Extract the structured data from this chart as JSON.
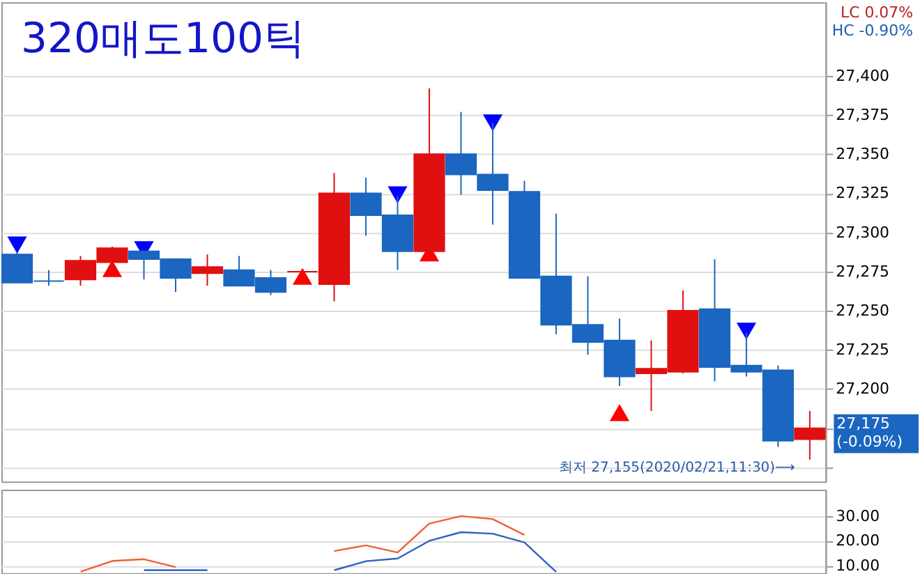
{
  "chart_data": [
    {
      "type": "candlestick",
      "title": "320매도100틱",
      "categories": [
        null,
        null,
        null,
        null,
        null,
        null,
        null,
        null,
        null,
        null,
        null,
        null,
        null,
        null,
        null,
        null,
        null,
        null,
        null,
        null,
        null,
        null,
        null,
        null,
        null,
        null
      ],
      "ohlc": [
        [
          27286,
          27287,
          27268,
          27268
        ],
        [
          27269,
          27276,
          27266,
          27269
        ],
        [
          27270,
          27285,
          27266,
          27282
        ],
        [
          27281,
          27291,
          27279,
          27290
        ],
        [
          27288,
          27288,
          27270,
          27283
        ],
        [
          27283,
          27283,
          27262,
          27271
        ],
        [
          27274,
          27286,
          27266,
          27278
        ],
        [
          27276,
          27285,
          27266,
          27266
        ],
        [
          27271,
          27276,
          27260,
          27262
        ],
        [
          27275,
          27276,
          27274,
          27275
        ],
        [
          27267,
          27338,
          27256,
          27325
        ],
        [
          27325,
          27335,
          27298,
          27311
        ],
        [
          27311,
          27323,
          27276,
          27288
        ],
        [
          27288,
          27392,
          27288,
          27350
        ],
        [
          27350,
          27377,
          27324,
          27337
        ],
        [
          27337,
          27370,
          27305,
          27327
        ],
        [
          27326,
          27333,
          27271,
          27271
        ],
        [
          27272,
          27312,
          27235,
          27241
        ],
        [
          27241,
          27272,
          27222,
          27230
        ],
        [
          27231,
          27245,
          27202,
          27208
        ],
        [
          27210,
          27231,
          27186,
          27213
        ],
        [
          27211,
          27263,
          27210,
          27250
        ],
        [
          27251,
          27283,
          27205,
          27214
        ],
        [
          27215,
          27236,
          27208,
          27211
        ],
        [
          27212,
          27215,
          27163,
          27167
        ],
        [
          27168,
          27186,
          27155,
          27175
        ]
      ],
      "colors": [
        "#1a66c0",
        "#1a66c0",
        "#e01010",
        "#e01010",
        "#1a66c0",
        "#1a66c0",
        "#e01010",
        "#1a66c0",
        "#1a66c0",
        "#e01010",
        "#e01010",
        "#1a66c0",
        "#1a66c0",
        "#e01010",
        "#1a66c0",
        "#1a66c0",
        "#1a66c0",
        "#1a66c0",
        "#1a66c0",
        "#1a66c0",
        "#e01010",
        "#e01010",
        "#1a66c0",
        "#1a66c0",
        "#1a66c0",
        "#e01010"
      ],
      "series": [
        {
          "type": "scatter",
          "color": "#0000ff",
          "marker": "triangle-down",
          "values": [
            27292,
            null,
            null,
            null,
            27289,
            null,
            null,
            null,
            null,
            null,
            null,
            null,
            27324,
            null,
            null,
            27370,
            null,
            null,
            null,
            null,
            null,
            null,
            null,
            27237,
            null,
            null
          ]
        },
        {
          "type": "scatter",
          "color": "#ff0000",
          "marker": "triangle",
          "values": [
            null,
            null,
            null,
            27277,
            null,
            null,
            null,
            null,
            null,
            27272,
            null,
            null,
            null,
            27287,
            null,
            null,
            null,
            null,
            null,
            27185,
            null,
            null,
            null,
            null,
            null,
            null
          ]
        }
      ],
      "ylim": [
        27141,
        27447
      ],
      "yticks": [
        {
          "value": 27150,
          "label": null
        },
        {
          "value": 27175,
          "label": null
        },
        {
          "value": 27200,
          "label": "27,200"
        },
        {
          "value": 27225,
          "label": "27,225"
        },
        {
          "value": 27250,
          "label": "27,250"
        },
        {
          "value": 27275,
          "label": "27,275"
        },
        {
          "value": 27300,
          "label": "27,300"
        },
        {
          "value": 27325,
          "label": "27,325"
        },
        {
          "value": 27350,
          "label": "27,350"
        },
        {
          "value": 27375,
          "label": "27,375"
        },
        {
          "value": 27400,
          "label": "27,400"
        }
      ],
      "grid": "y",
      "tick_labels": "y",
      "annotations": [
        "최저 27,155(2020/02/21,11:30)⟶",
        "LC  0.07%",
        "HC -0.90%",
        "27,175\n(-0.09%)"
      ]
    },
    {
      "type": "line",
      "categories": [
        null,
        null,
        null,
        null,
        null,
        null,
        null,
        null,
        null,
        null,
        null,
        null,
        null,
        null,
        null,
        null,
        null,
        null,
        null,
        null,
        null,
        null,
        null,
        null,
        null,
        null
      ],
      "ylim": [
        7,
        40.6
      ],
      "yticks": [
        {
          "value": 10,
          "label": "10.00"
        },
        {
          "value": 20,
          "label": "20.00"
        },
        {
          "value": 30,
          "label": "30.00"
        }
      ],
      "grid": "y",
      "tick_labels": "y",
      "series": [
        {
          "color": "#f06030",
          "values": [
            null,
            null,
            7.6,
            11.9,
            12.6,
            9.4,
            null,
            null,
            null,
            null,
            15.9,
            18.2,
            15.3,
            27.0,
            30.0,
            28.8,
            22.4,
            null,
            null,
            null,
            null,
            null,
            null,
            null,
            null,
            null
          ]
        },
        {
          "color": "#3060c0",
          "values": [
            null,
            null,
            null,
            null,
            8.2,
            8.2,
            8.2,
            null,
            null,
            null,
            8.2,
            11.8,
            12.9,
            20.0,
            23.5,
            22.9,
            19.4,
            7.5,
            null,
            null,
            null,
            null,
            null,
            null,
            null,
            null
          ]
        }
      ]
    }
  ]
}
